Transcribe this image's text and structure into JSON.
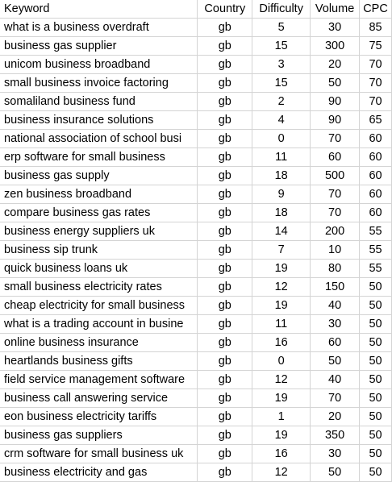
{
  "columns": {
    "keyword": "Keyword",
    "country": "Country",
    "difficulty": "Difficulty",
    "volume": "Volume",
    "cpc": "CPC"
  },
  "rows": [
    {
      "keyword": "what is a business overdraft",
      "country": "gb",
      "difficulty": "5",
      "volume": "30",
      "cpc": "85"
    },
    {
      "keyword": "business gas supplier",
      "country": "gb",
      "difficulty": "15",
      "volume": "300",
      "cpc": "75"
    },
    {
      "keyword": "unicom business broadband",
      "country": "gb",
      "difficulty": "3",
      "volume": "20",
      "cpc": "70"
    },
    {
      "keyword": "small business invoice factoring",
      "country": "gb",
      "difficulty": "15",
      "volume": "50",
      "cpc": "70"
    },
    {
      "keyword": "somaliland business fund",
      "country": "gb",
      "difficulty": "2",
      "volume": "90",
      "cpc": "70"
    },
    {
      "keyword": "business insurance solutions",
      "country": "gb",
      "difficulty": "4",
      "volume": "90",
      "cpc": "65"
    },
    {
      "keyword": "national association of school busi",
      "country": "gb",
      "difficulty": "0",
      "volume": "70",
      "cpc": "60"
    },
    {
      "keyword": "erp software for small business",
      "country": "gb",
      "difficulty": "11",
      "volume": "60",
      "cpc": "60"
    },
    {
      "keyword": "business gas supply",
      "country": "gb",
      "difficulty": "18",
      "volume": "500",
      "cpc": "60"
    },
    {
      "keyword": "zen business broadband",
      "country": "gb",
      "difficulty": "9",
      "volume": "70",
      "cpc": "60"
    },
    {
      "keyword": "compare business gas rates",
      "country": "gb",
      "difficulty": "18",
      "volume": "70",
      "cpc": "60"
    },
    {
      "keyword": "business energy suppliers uk",
      "country": "gb",
      "difficulty": "14",
      "volume": "200",
      "cpc": "55"
    },
    {
      "keyword": "business sip trunk",
      "country": "gb",
      "difficulty": "7",
      "volume": "10",
      "cpc": "55"
    },
    {
      "keyword": "quick business loans uk",
      "country": "gb",
      "difficulty": "19",
      "volume": "80",
      "cpc": "55"
    },
    {
      "keyword": "small business electricity rates",
      "country": "gb",
      "difficulty": "12",
      "volume": "150",
      "cpc": "50"
    },
    {
      "keyword": "cheap electricity for small business",
      "country": "gb",
      "difficulty": "19",
      "volume": "40",
      "cpc": "50"
    },
    {
      "keyword": "what is a trading account in busine",
      "country": "gb",
      "difficulty": "11",
      "volume": "30",
      "cpc": "50"
    },
    {
      "keyword": "online business insurance",
      "country": "gb",
      "difficulty": "16",
      "volume": "60",
      "cpc": "50"
    },
    {
      "keyword": "heartlands business gifts",
      "country": "gb",
      "difficulty": "0",
      "volume": "50",
      "cpc": "50"
    },
    {
      "keyword": "field service management software",
      "country": "gb",
      "difficulty": "12",
      "volume": "40",
      "cpc": "50"
    },
    {
      "keyword": "business call answering service",
      "country": "gb",
      "difficulty": "19",
      "volume": "70",
      "cpc": "50"
    },
    {
      "keyword": "eon business electricity tariffs",
      "country": "gb",
      "difficulty": "1",
      "volume": "20",
      "cpc": "50"
    },
    {
      "keyword": "business gas suppliers",
      "country": "gb",
      "difficulty": "19",
      "volume": "350",
      "cpc": "50"
    },
    {
      "keyword": "crm software for small business uk",
      "country": "gb",
      "difficulty": "16",
      "volume": "30",
      "cpc": "50"
    },
    {
      "keyword": "business electricity and gas",
      "country": "gb",
      "difficulty": "12",
      "volume": "50",
      "cpc": "50"
    }
  ]
}
